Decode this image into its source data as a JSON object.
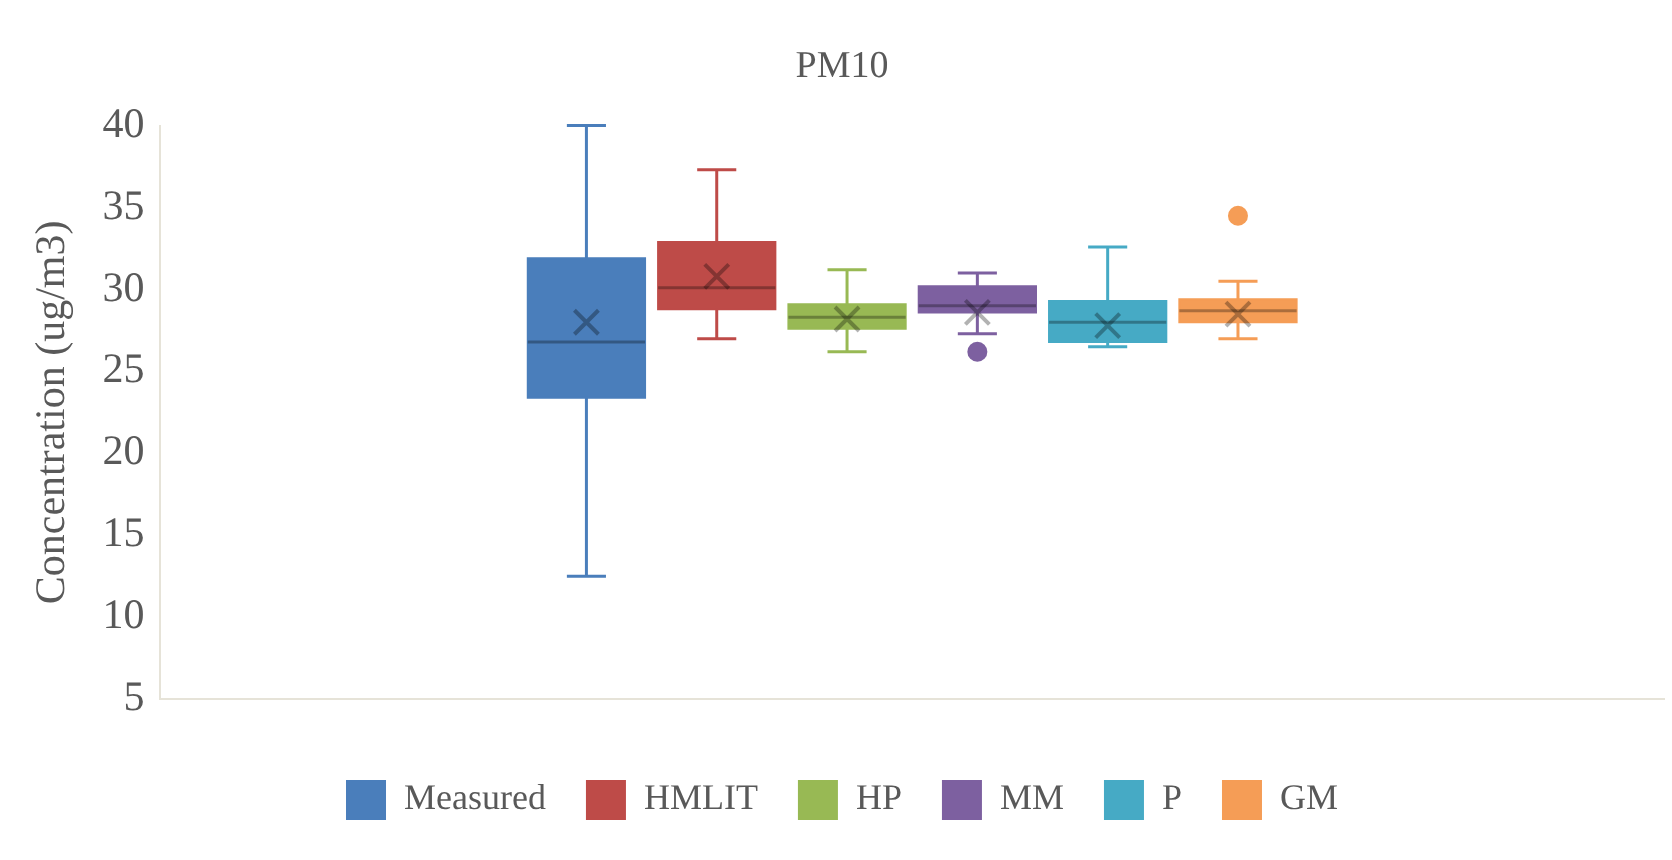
{
  "chart_data": {
    "type": "box",
    "title": "PM10",
    "ylabel": "Concentration (ug/m3)",
    "categories": [
      null
    ],
    "ylim": [
      5,
      40
    ],
    "yticks": [
      5,
      10,
      15,
      20,
      25,
      30,
      35,
      40
    ],
    "grid": false,
    "legend": "bottom",
    "series": [
      {
        "name": "Measured",
        "color": "#4a7ebb",
        "boxes": [
          {
            "low": 12.5,
            "q1": 23.4,
            "median": 26.8,
            "q3": 31.9,
            "high": 40,
            "mean": 28
          }
        ]
      },
      {
        "name": "HMLIT",
        "color": "#be4b48",
        "boxes": [
          {
            "low": 27,
            "q1": 28.8,
            "median": 30.1,
            "q3": 32.9,
            "high": 37.3,
            "mean": 30.8
          }
        ]
      },
      {
        "name": "HP",
        "color": "#98b954",
        "boxes": [
          {
            "low": 26.2,
            "q1": 27.6,
            "median": 28.3,
            "q3": 29.1,
            "high": 31.2,
            "mean": 28.2
          }
        ]
      },
      {
        "name": "MM",
        "color": "#7d60a0",
        "boxes": [
          {
            "low": 27.3,
            "q1": 28.6,
            "median": 29,
            "q3": 30.2,
            "high": 31,
            "mean": 28.6,
            "outliers": [
              26.2
            ]
          }
        ]
      },
      {
        "name": "P",
        "color": "#46aac5",
        "boxes": [
          {
            "low": 26.5,
            "q1": 26.8,
            "median": 28,
            "q3": 29.3,
            "high": 32.6,
            "mean": 27.8
          }
        ]
      },
      {
        "name": "GM",
        "color": "#f59d56",
        "boxes": [
          {
            "low": 27,
            "q1": 28,
            "median": 28.7,
            "q3": 29.4,
            "high": 30.5,
            "mean": 28.5,
            "outliers": [
              34.5
            ]
          }
        ]
      }
    ]
  }
}
